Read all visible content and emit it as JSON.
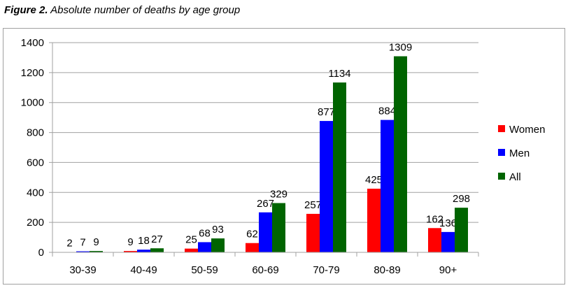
{
  "caption": {
    "label": "Figure 2.",
    "title": "Absolute number of deaths by age group"
  },
  "chart_data": {
    "type": "bar",
    "title": "Absolute number of deaths by age group",
    "categories": [
      "30-39",
      "40-49",
      "50-59",
      "60-69",
      "70-79",
      "80-89",
      "90+"
    ],
    "series": [
      {
        "name": "Women",
        "color": "#ff0000",
        "values": [
          2,
          9,
          25,
          62,
          257,
          425,
          162
        ]
      },
      {
        "name": "Men",
        "color": "#0000ff",
        "values": [
          7,
          18,
          68,
          267,
          877,
          884,
          136
        ]
      },
      {
        "name": "All",
        "color": "#006400",
        "values": [
          9,
          27,
          93,
          329,
          1134,
          1309,
          298
        ]
      }
    ],
    "yticks": [
      0,
      200,
      400,
      600,
      800,
      1000,
      1200,
      1400
    ],
    "ylim": [
      0,
      1400
    ],
    "grid": true,
    "legend": "right",
    "xlabel": "",
    "ylabel": ""
  }
}
